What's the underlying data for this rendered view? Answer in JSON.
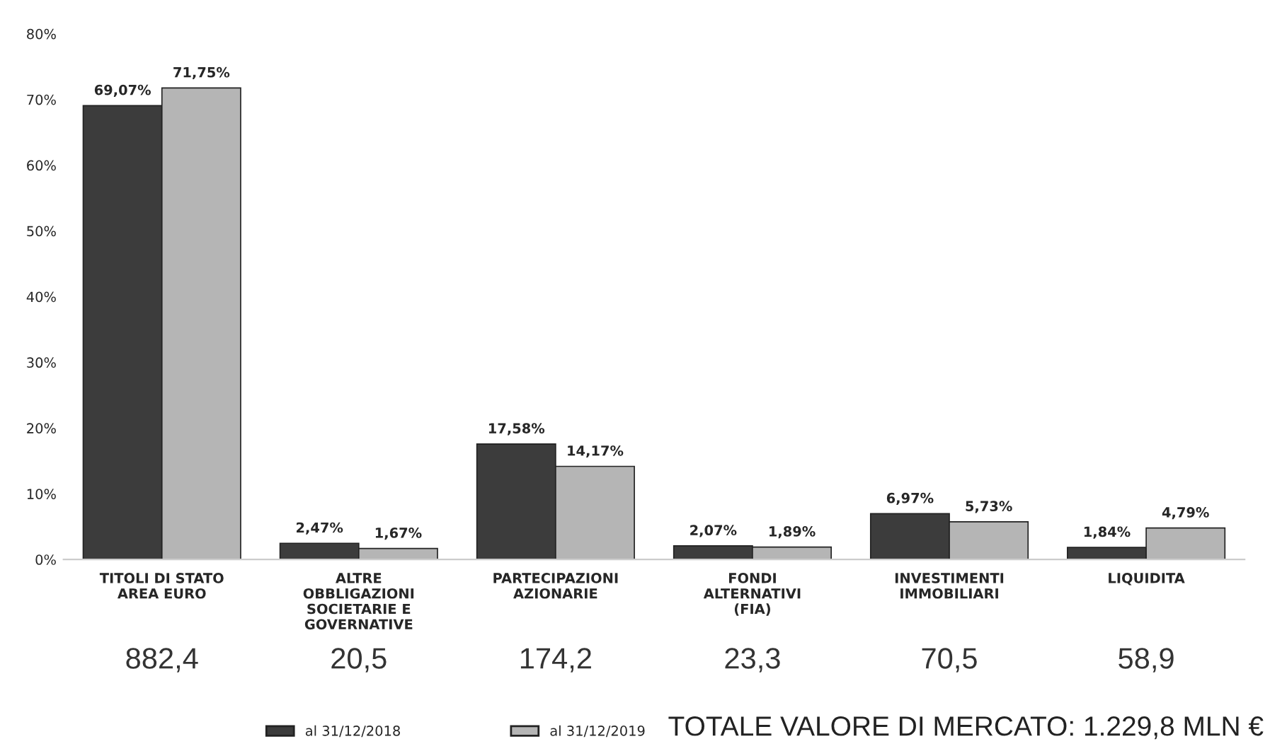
{
  "chart_data": {
    "type": "bar",
    "categories": [
      "TITOLI DI STATO AREA EURO",
      "ALTRE OBBLIGAZIONI SOCIETARIE E GOVERNATIVE",
      "PARTECIPAZIONI AZIONARIE",
      "FONDI ALTERNATIVI (FIA)",
      "INVESTIMENTI IMMOBILIARI",
      "LIQUIDITA"
    ],
    "series": [
      {
        "name": "al 31/12/2018",
        "color": "#3c3c3c",
        "values": [
          69.07,
          2.47,
          17.58,
          2.07,
          6.97,
          1.84
        ],
        "value_labels": [
          "69,07%",
          "2,47%",
          "17,58%",
          "2,07%",
          "6,97%",
          "1,84%"
        ]
      },
      {
        "name": "al 31/12/2019",
        "color": "#b5b5b5",
        "values": [
          71.75,
          1.67,
          14.17,
          1.89,
          5.73,
          4.79
        ],
        "value_labels": [
          "71,75%",
          "1,67%",
          "14,17%",
          "1,89%",
          "5,73%",
          "4,79%"
        ]
      }
    ],
    "ylim": [
      0,
      80
    ],
    "yticks": [
      {
        "value": 0,
        "label": "0%"
      },
      {
        "value": 10,
        "label": "10%"
      },
      {
        "value": 20,
        "label": "20%"
      },
      {
        "value": 30,
        "label": "30%"
      },
      {
        "value": 40,
        "label": "40%"
      },
      {
        "value": 50,
        "label": "50%"
      },
      {
        "value": 60,
        "label": "60%"
      },
      {
        "value": 70,
        "label": "70%"
      },
      {
        "value": 80,
        "label": "80%"
      }
    ],
    "grid": false,
    "legend": "bottom left",
    "annotations": [
      "882,4",
      "20,5",
      "174,2",
      "23,3",
      "70,5",
      "58,9",
      "TOTALE VALORE DI MERCATO: 1.229,8 MLN €"
    ]
  }
}
